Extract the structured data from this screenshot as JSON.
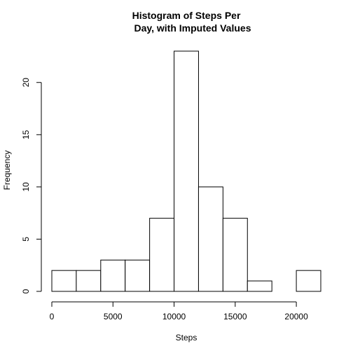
{
  "chart_data": {
    "type": "bar",
    "title": "Histogram of Steps Per\n Day, with Imputed Values",
    "title_lines": [
      "Histogram of Steps Per",
      "Day, with Imputed Values"
    ],
    "xlabel": "Steps",
    "ylabel": "Frequency",
    "bin_edges": [
      0,
      2000,
      4000,
      6000,
      8000,
      10000,
      12000,
      14000,
      16000,
      18000,
      20000,
      22000
    ],
    "values": [
      2,
      2,
      3,
      3,
      7,
      23,
      10,
      7,
      1,
      0,
      2
    ],
    "xlim": [
      0,
      22000
    ],
    "ylim": [
      0,
      23
    ],
    "xticks": [
      0,
      5000,
      10000,
      15000,
      20000
    ],
    "yticks": [
      0,
      5,
      10,
      15,
      20
    ],
    "grid": false,
    "bar_fill": "#ffffff",
    "bar_stroke": "#000000"
  }
}
